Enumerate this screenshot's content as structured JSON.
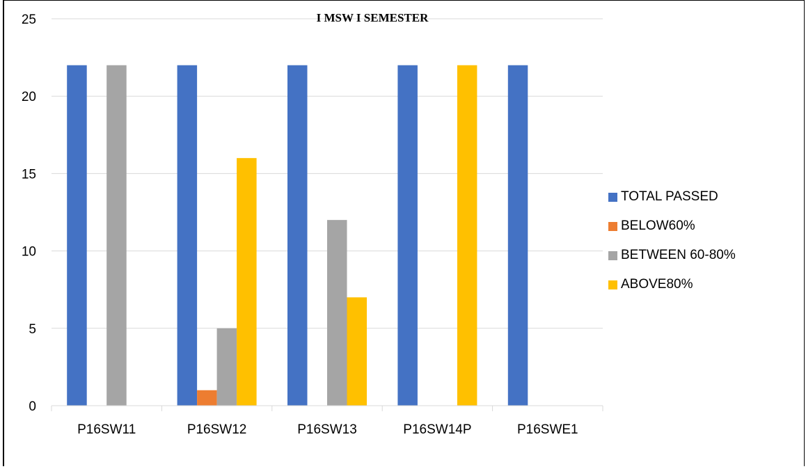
{
  "chart_data": {
    "type": "bar",
    "title": "I MSW I SEMESTER",
    "categories": [
      "P16SW11",
      "P16SW12",
      "P16SW13",
      "P16SW14P",
      "P16SWE1"
    ],
    "series": [
      {
        "name": "TOTAL PASSED",
        "color": "#4472C4",
        "values": [
          22,
          22,
          22,
          22,
          22
        ]
      },
      {
        "name": "BELOW60%",
        "color": "#ED7D31",
        "values": [
          0,
          1,
          0,
          0,
          0
        ]
      },
      {
        "name": "BETWEEN 60-80%",
        "color": "#A5A5A5",
        "values": [
          22,
          5,
          12,
          0,
          0
        ]
      },
      {
        "name": "ABOVE80%",
        "color": "#FFC000",
        "values": [
          0,
          16,
          7,
          22,
          0
        ]
      }
    ],
    "y_ticks": [
      "0",
      "5",
      "10",
      "15",
      "20",
      "25"
    ],
    "ylim": [
      0,
      25
    ],
    "grid": true,
    "legend_position": "right"
  }
}
